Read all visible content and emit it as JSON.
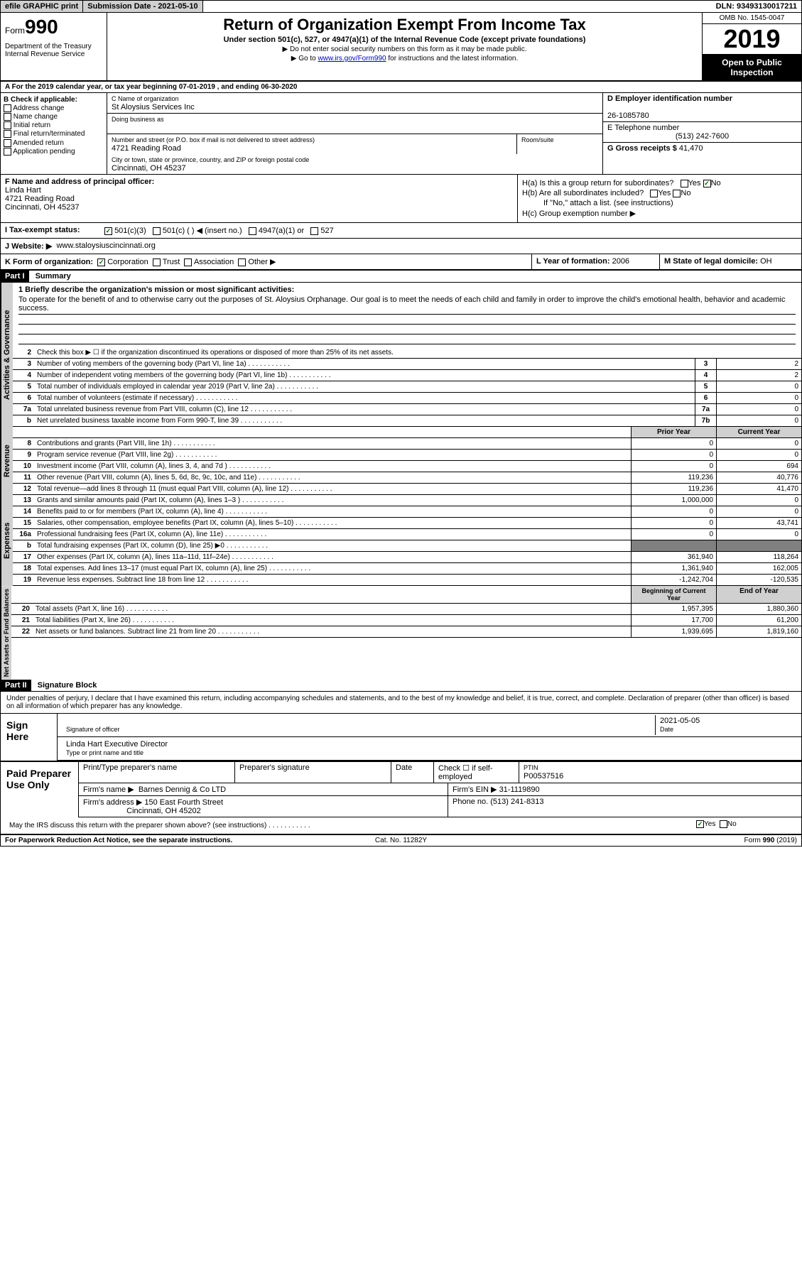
{
  "top": {
    "efile": "efile GRAPHIC print",
    "submission": "Submission Date - 2021-05-10",
    "dln": "DLN: 93493130017211"
  },
  "header": {
    "form_label": "Form",
    "form_num": "990",
    "dept": "Department of the Treasury\nInternal Revenue Service",
    "title": "Return of Organization Exempt From Income Tax",
    "subtitle": "Under section 501(c), 527, or 4947(a)(1) of the Internal Revenue Code (except private foundations)",
    "note1": "▶ Do not enter social security numbers on this form as it may be made public.",
    "note2_pre": "▶ Go to ",
    "note2_link": "www.irs.gov/Form990",
    "note2_post": " for instructions and the latest information.",
    "omb": "OMB No. 1545-0047",
    "year": "2019",
    "open": "Open to Public Inspection"
  },
  "row_a": "A For the 2019 calendar year, or tax year beginning 07-01-2019   , and ending 06-30-2020",
  "b_label": "B Check if applicable:",
  "b_opts": [
    "Address change",
    "Name change",
    "Initial return",
    "Final return/terminated",
    "Amended return",
    "Application pending"
  ],
  "c": {
    "name_label": "C Name of organization",
    "name": "St Aloysius Services Inc",
    "dba": "Doing business as",
    "addr_label": "Number and street (or P.O. box if mail is not delivered to street address)",
    "room": "Room/suite",
    "addr": "4721 Reading Road",
    "city_label": "City or town, state or province, country, and ZIP or foreign postal code",
    "city": "Cincinnati, OH  45237"
  },
  "d": {
    "ein_label": "D Employer identification number",
    "ein": "26-1085780",
    "tel_label": "E Telephone number",
    "tel": "(513) 242-7600",
    "gross_label": "G Gross receipts $",
    "gross": "41,470"
  },
  "f": {
    "label": "F Name and address of principal officer:",
    "name": "Linda Hart",
    "addr1": "4721 Reading Road",
    "addr2": "Cincinnati, OH  45237"
  },
  "h": {
    "a": "H(a)  Is this a group return for subordinates?",
    "b": "H(b)  Are all subordinates included?",
    "b_note": "If \"No,\" attach a list. (see instructions)",
    "c": "H(c)  Group exemption number ▶"
  },
  "i": {
    "label": "I  Tax-exempt status:",
    "o1": "501(c)(3)",
    "o2": "501(c) (  ) ◀ (insert no.)",
    "o3": "4947(a)(1) or",
    "o4": "527"
  },
  "j": {
    "label": "J  Website: ▶",
    "val": "www.staloysiuscincinnati.org"
  },
  "k": {
    "label": "K Form of organization:",
    "o1": "Corporation",
    "o2": "Trust",
    "o3": "Association",
    "o4": "Other ▶"
  },
  "l": {
    "label": "L Year of formation:",
    "val": "2006"
  },
  "m": {
    "label": "M State of legal domicile:",
    "val": "OH"
  },
  "part1": {
    "header": "Part I",
    "title": "Summary"
  },
  "mission": {
    "label": "1  Briefly describe the organization's mission or most significant activities:",
    "text": "To operate for the benefit of and to otherwise carry out the purposes of St. Aloysius Orphanage. Our goal is to meet the needs of each child and family in order to improve the child's emotional health, behavior and academic success."
  },
  "line2": "Check this box ▶ ☐  if the organization discontinued its operations or disposed of more than 25% of its net assets.",
  "gov_lines": [
    {
      "n": "3",
      "d": "Number of voting members of the governing body (Part VI, line 1a)",
      "b": "3",
      "v": "2"
    },
    {
      "n": "4",
      "d": "Number of independent voting members of the governing body (Part VI, line 1b)",
      "b": "4",
      "v": "2"
    },
    {
      "n": "5",
      "d": "Total number of individuals employed in calendar year 2019 (Part V, line 2a)",
      "b": "5",
      "v": "0"
    },
    {
      "n": "6",
      "d": "Total number of volunteers (estimate if necessary)",
      "b": "6",
      "v": "0"
    },
    {
      "n": "7a",
      "d": "Total unrelated business revenue from Part VIII, column (C), line 12",
      "b": "7a",
      "v": "0"
    },
    {
      "n": "b",
      "d": "Net unrelated business taxable income from Form 990-T, line 39",
      "b": "7b",
      "v": "0"
    }
  ],
  "prior_label": "Prior Year",
  "current_label": "Current Year",
  "rev_lines": [
    {
      "n": "8",
      "d": "Contributions and grants (Part VIII, line 1h)",
      "p": "0",
      "c": "0"
    },
    {
      "n": "9",
      "d": "Program service revenue (Part VIII, line 2g)",
      "p": "0",
      "c": "0"
    },
    {
      "n": "10",
      "d": "Investment income (Part VIII, column (A), lines 3, 4, and 7d )",
      "p": "0",
      "c": "694"
    },
    {
      "n": "11",
      "d": "Other revenue (Part VIII, column (A), lines 5, 6d, 8c, 9c, 10c, and 11e)",
      "p": "119,236",
      "c": "40,776"
    },
    {
      "n": "12",
      "d": "Total revenue—add lines 8 through 11 (must equal Part VIII, column (A), line 12)",
      "p": "119,236",
      "c": "41,470"
    }
  ],
  "exp_lines": [
    {
      "n": "13",
      "d": "Grants and similar amounts paid (Part IX, column (A), lines 1–3 )",
      "p": "1,000,000",
      "c": "0"
    },
    {
      "n": "14",
      "d": "Benefits paid to or for members (Part IX, column (A), line 4)",
      "p": "0",
      "c": "0"
    },
    {
      "n": "15",
      "d": "Salaries, other compensation, employee benefits (Part IX, column (A), lines 5–10)",
      "p": "0",
      "c": "43,741"
    },
    {
      "n": "16a",
      "d": "Professional fundraising fees (Part IX, column (A), line 11e)",
      "p": "0",
      "c": "0"
    },
    {
      "n": "b",
      "d": "Total fundraising expenses (Part IX, column (D), line 25) ▶0",
      "p": "",
      "c": "",
      "shade": true
    },
    {
      "n": "17",
      "d": "Other expenses (Part IX, column (A), lines 11a–11d, 11f–24e)",
      "p": "361,940",
      "c": "118,264"
    },
    {
      "n": "18",
      "d": "Total expenses. Add lines 13–17 (must equal Part IX, column (A), line 25)",
      "p": "1,361,940",
      "c": "162,005"
    },
    {
      "n": "19",
      "d": "Revenue less expenses. Subtract line 18 from line 12",
      "p": "-1,242,704",
      "c": "-120,535"
    }
  ],
  "boy_label": "Beginning of Current Year",
  "eoy_label": "End of Year",
  "net_lines": [
    {
      "n": "20",
      "d": "Total assets (Part X, line 16)",
      "p": "1,957,395",
      "c": "1,880,360"
    },
    {
      "n": "21",
      "d": "Total liabilities (Part X, line 26)",
      "p": "17,700",
      "c": "61,200"
    },
    {
      "n": "22",
      "d": "Net assets or fund balances. Subtract line 21 from line 20",
      "p": "1,939,695",
      "c": "1,819,160"
    }
  ],
  "vert": {
    "gov": "Activities & Governance",
    "rev": "Revenue",
    "exp": "Expenses",
    "net": "Net Assets or Fund Balances"
  },
  "part2": {
    "header": "Part II",
    "title": "Signature Block"
  },
  "sig": {
    "intro": "Under penalties of perjury, I declare that I have examined this return, including accompanying schedules and statements, and to the best of my knowledge and belief, it is true, correct, and complete. Declaration of preparer (other than officer) is based on all information of which preparer has any knowledge.",
    "sign_here": "Sign Here",
    "officer": "Signature of officer",
    "date": "2021-05-05",
    "date_label": "Date",
    "name": "Linda Hart  Executive Director",
    "name_label": "Type or print name and title"
  },
  "prep": {
    "label": "Paid Preparer Use Only",
    "h1": "Print/Type preparer's name",
    "h2": "Preparer's signature",
    "h3": "Date",
    "h4": "Check ☐ if self-employed",
    "h5": "PTIN",
    "ptin": "P00537516",
    "firm_label": "Firm's name   ▶",
    "firm": "Barnes Dennig & Co LTD",
    "ein_label": "Firm's EIN ▶",
    "ein": "31-1119890",
    "addr_label": "Firm's address ▶",
    "addr": "150 East Fourth Street",
    "addr2": "Cincinnati, OH  45202",
    "phone_label": "Phone no.",
    "phone": "(513) 241-8313"
  },
  "discuss": "May the IRS discuss this return with the preparer shown above? (see instructions)",
  "footer": {
    "pra": "For Paperwork Reduction Act Notice, see the separate instructions.",
    "cat": "Cat. No. 11282Y",
    "form": "Form 990 (2019)"
  }
}
